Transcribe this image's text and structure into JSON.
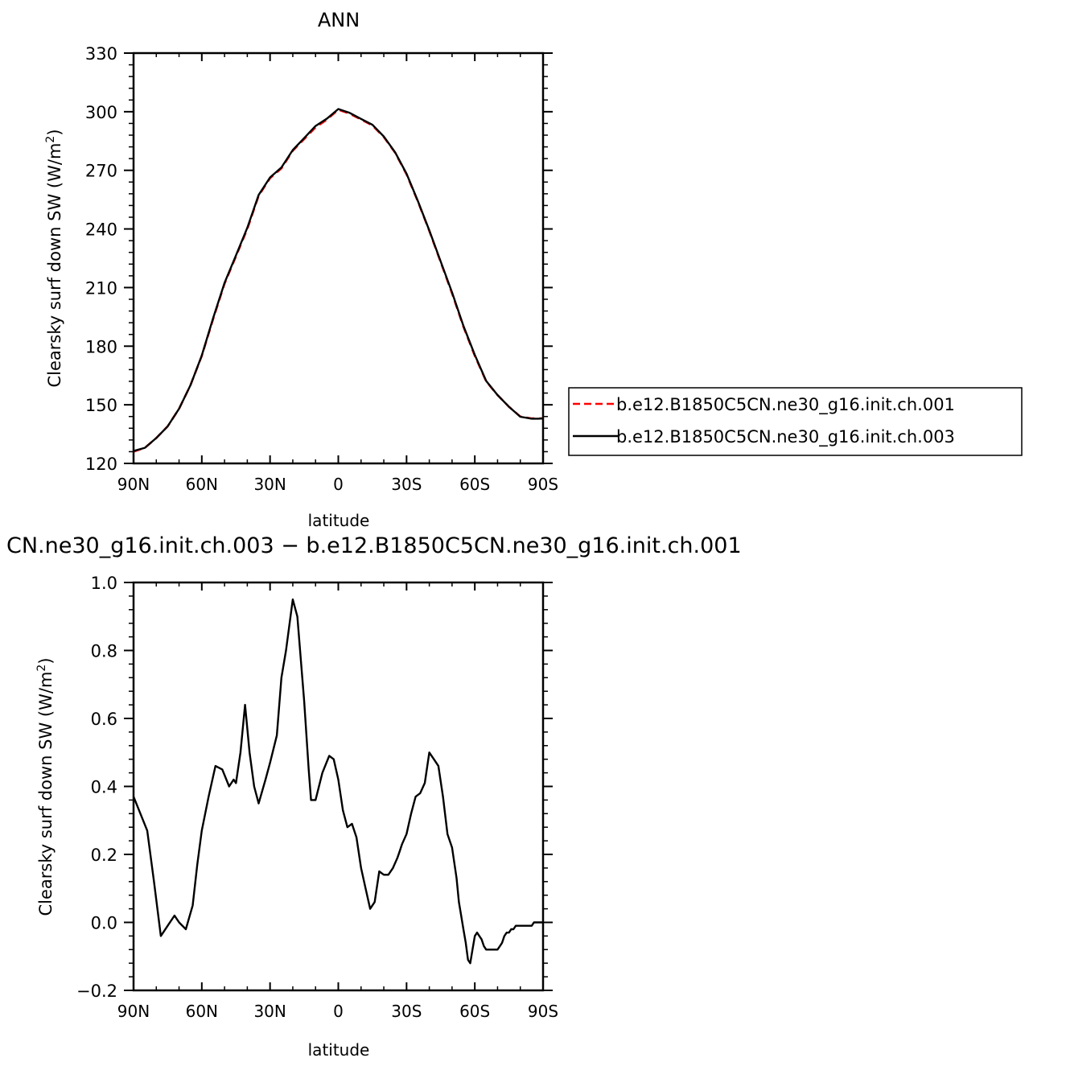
{
  "chart_data": [
    {
      "type": "line",
      "title": "ANN",
      "xlabel": "latitude",
      "ylabel": "Clearsky surf down SW (W/m",
      "ylabel_sup": "2",
      "ylabel_end": ")",
      "xlim": [
        90,
        -90
      ],
      "ylim": [
        120,
        330
      ],
      "xticks": [
        90,
        60,
        30,
        0,
        -30,
        -60,
        -90
      ],
      "xtick_labels": [
        "90N",
        "60N",
        "30N",
        "0",
        "30S",
        "60S",
        "90S"
      ],
      "yticks": [
        120,
        150,
        180,
        210,
        240,
        270,
        300,
        330
      ],
      "ytick_labels": [
        "120",
        "150",
        "180",
        "210",
        "240",
        "270",
        "300",
        "330"
      ],
      "legend_position": "right",
      "series": [
        {
          "name": "b.e12.B1850C5CN.ne30_g16.init.ch.001",
          "color": "#ff0000",
          "dash": true,
          "x": [
            90,
            85,
            80,
            75,
            70,
            65,
            60,
            55,
            50,
            45,
            40,
            35,
            30,
            25,
            20,
            15,
            10,
            5,
            0,
            -5,
            -10,
            -15,
            -20,
            -25,
            -30,
            -35,
            -40,
            -45,
            -50,
            -55,
            -60,
            -65,
            -70,
            -75,
            -80,
            -85,
            -88,
            -90
          ],
          "y": [
            126,
            128,
            133,
            139,
            148,
            160,
            175,
            194,
            212,
            226,
            240,
            257,
            266,
            271,
            280,
            286,
            292,
            296,
            301,
            299,
            296,
            293,
            287,
            279,
            268,
            254,
            239,
            223,
            207,
            190,
            175,
            162,
            155,
            149,
            144,
            143,
            143,
            143
          ]
        },
        {
          "name": "b.e12.B1850C5CN.ne30_g16.init.ch.003",
          "color": "#000000",
          "dash": false,
          "x": [
            90,
            85,
            80,
            75,
            70,
            65,
            60,
            55,
            50,
            45,
            40,
            35,
            30,
            25,
            20,
            15,
            10,
            5,
            0,
            -5,
            -10,
            -15,
            -20,
            -25,
            -30,
            -35,
            -40,
            -45,
            -50,
            -55,
            -60,
            -65,
            -70,
            -75,
            -80,
            -85,
            -88,
            -90
          ],
          "y": [
            126.4,
            128,
            133,
            139,
            148,
            160,
            175.2,
            194.5,
            212.4,
            226.5,
            240.6,
            257.4,
            266.4,
            271.5,
            280.4,
            286.5,
            292.7,
            296.5,
            301.4,
            299.4,
            296.3,
            293.3,
            287.3,
            279.2,
            268.3,
            254.2,
            239.3,
            223.3,
            207.5,
            190.4,
            175.5,
            162.2,
            155,
            149,
            143.9,
            142.9,
            142.9,
            143
          ]
        }
      ]
    },
    {
      "type": "line",
      "title": "CN.ne30_g16.init.ch.003 − b.e12.B1850C5CN.ne30_g16.init.ch.001",
      "xlabel": "latitude",
      "ylabel": "Clearsky surf down SW (W/m",
      "ylabel_sup": "2",
      "ylabel_end": ")",
      "xlim": [
        90,
        -90
      ],
      "ylim": [
        -0.2,
        1.0
      ],
      "xticks": [
        90,
        60,
        30,
        0,
        -30,
        -60,
        -90
      ],
      "xtick_labels": [
        "90N",
        "60N",
        "30N",
        "0",
        "30S",
        "60S",
        "90S"
      ],
      "yticks": [
        -0.2,
        0.0,
        0.2,
        0.4,
        0.6,
        0.8,
        1.0
      ],
      "ytick_labels": [
        "−0.2",
        "0.0",
        "0.2",
        "0.4",
        "0.6",
        "0.8",
        "1.0"
      ],
      "series": [
        {
          "color": "#000000",
          "dash": false,
          "x": [
            90,
            87,
            84,
            81,
            78,
            75,
            72,
            70,
            67,
            64,
            62,
            60,
            57,
            54,
            51,
            48,
            46,
            45,
            43,
            41,
            39,
            37,
            35,
            32,
            30,
            27,
            25,
            23,
            20,
            18,
            15,
            13,
            12,
            10,
            7,
            4,
            2,
            0,
            -2,
            -4,
            -6,
            -8,
            -10,
            -12,
            -14,
            -16,
            -18,
            -20,
            -22,
            -24,
            -26,
            -27,
            -28,
            -30,
            -32,
            -34,
            -36,
            -38,
            -40,
            -42,
            -44,
            -46,
            -48,
            -50,
            -52,
            -53,
            -54,
            -55,
            -56,
            -57,
            -58,
            -59,
            -60,
            -61,
            -62,
            -63,
            -64,
            -65,
            -66,
            -67,
            -68,
            -69,
            -70,
            -71,
            -72,
            -73,
            -74,
            -75,
            -76,
            -77,
            -78,
            -80,
            -82,
            -84,
            -85,
            -86,
            -87,
            -88,
            -89,
            -90
          ],
          "y": [
            0.37,
            0.32,
            0.27,
            0.12,
            -0.04,
            -0.01,
            0.02,
            0.0,
            -0.02,
            0.05,
            0.17,
            0.27,
            0.37,
            0.46,
            0.45,
            0.4,
            0.42,
            0.41,
            0.5,
            0.64,
            0.5,
            0.4,
            0.35,
            0.42,
            0.47,
            0.55,
            0.72,
            0.8,
            0.95,
            0.9,
            0.65,
            0.45,
            0.36,
            0.36,
            0.44,
            0.49,
            0.48,
            0.42,
            0.33,
            0.28,
            0.29,
            0.25,
            0.16,
            0.1,
            0.04,
            0.06,
            0.15,
            0.14,
            0.14,
            0.16,
            0.19,
            0.21,
            0.23,
            0.26,
            0.32,
            0.37,
            0.38,
            0.41,
            0.5,
            0.48,
            0.46,
            0.37,
            0.26,
            0.22,
            0.13,
            0.06,
            0.02,
            -0.02,
            -0.06,
            -0.11,
            -0.12,
            -0.08,
            -0.04,
            -0.03,
            -0.04,
            -0.05,
            -0.07,
            -0.08,
            -0.08,
            -0.08,
            -0.08,
            -0.08,
            -0.08,
            -0.07,
            -0.06,
            -0.04,
            -0.03,
            -0.03,
            -0.02,
            -0.02,
            -0.01,
            -0.01,
            -0.01,
            -0.01,
            -0.01,
            0.0,
            0.0,
            0.0,
            0.0,
            0.0
          ]
        }
      ]
    }
  ]
}
